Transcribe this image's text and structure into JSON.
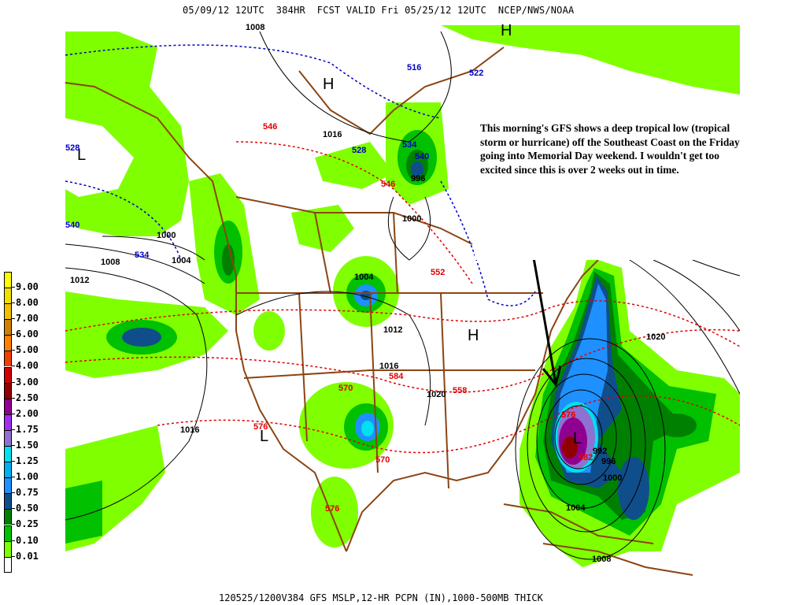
{
  "header": {
    "title": "05/09/12 12UTC  384HR  FCST VALID Fri 05/25/12 12UTC  NCEP/NWS/NOAA"
  },
  "footer": {
    "caption": "120525/1200V384 GFS MSLP,12-HR PCPN (IN),1000-500MB THICK"
  },
  "annotation": {
    "text": "This morning's GFS shows a deep tropical low (tropical storm or hurricane) off the Southeast Coast on the Friday going into Memorial Day weekend.  I wouldn't get too excited since this is over 2 weeks out in time."
  },
  "legend": {
    "units": "IN",
    "items": [
      {
        "label": "9.00",
        "color": "#ffff00"
      },
      {
        "label": "8.00",
        "color": "#f0e000"
      },
      {
        "label": "7.00",
        "color": "#f0c000"
      },
      {
        "label": "6.00",
        "color": "#d08000"
      },
      {
        "label": "5.00",
        "color": "#ff8000"
      },
      {
        "label": "4.00",
        "color": "#f04000"
      },
      {
        "label": "3.00",
        "color": "#d00000"
      },
      {
        "label": "2.50",
        "color": "#900000"
      },
      {
        "label": "2.00",
        "color": "#900090"
      },
      {
        "label": "1.75",
        "color": "#a030f0"
      },
      {
        "label": "1.50",
        "color": "#9070d0"
      },
      {
        "label": "1.25",
        "color": "#00e0f0"
      },
      {
        "label": "1.00",
        "color": "#00b0f0"
      },
      {
        "label": "0.75",
        "color": "#1e90ff"
      },
      {
        "label": "0.50",
        "color": "#104e8b"
      },
      {
        "label": "0.25",
        "color": "#008000"
      },
      {
        "label": "0.10",
        "color": "#00c000"
      },
      {
        "label": "0.01",
        "color": "#80ff00"
      },
      {
        "label": "",
        "color": "#ffffff"
      }
    ]
  },
  "pressure_centers": [
    "H",
    "H",
    "L",
    "L",
    "H",
    "H",
    "L"
  ],
  "isobar_labels": [
    "1008",
    "1016",
    "996",
    "1000",
    "1000",
    "1004",
    "1008",
    "1012",
    "1004",
    "1012",
    "1016",
    "1020",
    "1016",
    "1020",
    "992",
    "996",
    "1000",
    "1004",
    "1008",
    "103"
  ],
  "thickness_labels_red": [
    "546",
    "546",
    "552",
    "570",
    "584",
    "558",
    "576",
    "570",
    "576",
    "576",
    "582"
  ],
  "thickness_labels_blue": [
    "516",
    "522",
    "528",
    "534",
    "540",
    "528",
    "540",
    "534"
  ],
  "colors": {
    "coastline": "#8b4513",
    "isobar": "#000000",
    "thickness_warm": "#e00000",
    "thickness_cold": "#0000c0"
  }
}
